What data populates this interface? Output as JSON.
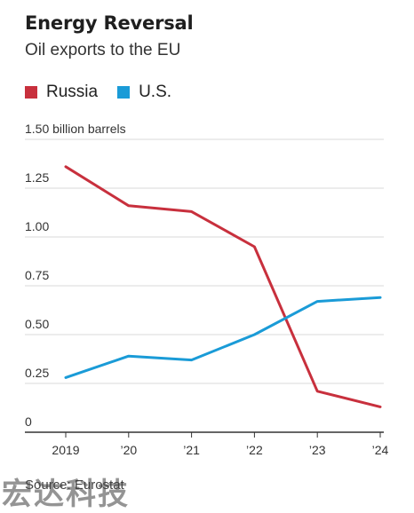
{
  "header": {
    "title": "Energy Reversal",
    "subtitle": "Oil exports to the EU"
  },
  "footer": {
    "source": "Source: Eurostat",
    "watermark": "宏达科技"
  },
  "colors": {
    "russia": "#c8303d",
    "us": "#1a9bd7",
    "grid": "#d9d9d9",
    "axis": "#333333"
  },
  "chart_data": {
    "type": "line",
    "title": "Energy Reversal",
    "subtitle": "Oil exports to the EU",
    "x": [
      "2019",
      "'20",
      "'21",
      "'22",
      "'23",
      "'24"
    ],
    "x_tick_labels": [
      "2019",
      "’20",
      "’21",
      "’22",
      "’23",
      "’24"
    ],
    "y_unit_label": "1.50 billion barrels",
    "y_ticks": [
      {
        "value": 0,
        "label": "0"
      },
      {
        "value": 0.25,
        "label": "0.25"
      },
      {
        "value": 0.5,
        "label": "0.50"
      },
      {
        "value": 0.75,
        "label": "0.75"
      },
      {
        "value": 1.0,
        "label": "1.00"
      },
      {
        "value": 1.25,
        "label": "1.25"
      },
      {
        "value": 1.5,
        "label": "1.50 billion barrels"
      }
    ],
    "ylim": [
      0,
      1.5
    ],
    "grid": true,
    "legend_position": "top-left",
    "series": [
      {
        "name": "Russia",
        "color": "#c8303d",
        "values": [
          1.36,
          1.16,
          1.13,
          0.95,
          0.21,
          0.13
        ]
      },
      {
        "name": "U.S.",
        "color": "#1a9bd7",
        "values": [
          0.28,
          0.39,
          0.37,
          0.5,
          0.67,
          0.69
        ]
      }
    ]
  }
}
